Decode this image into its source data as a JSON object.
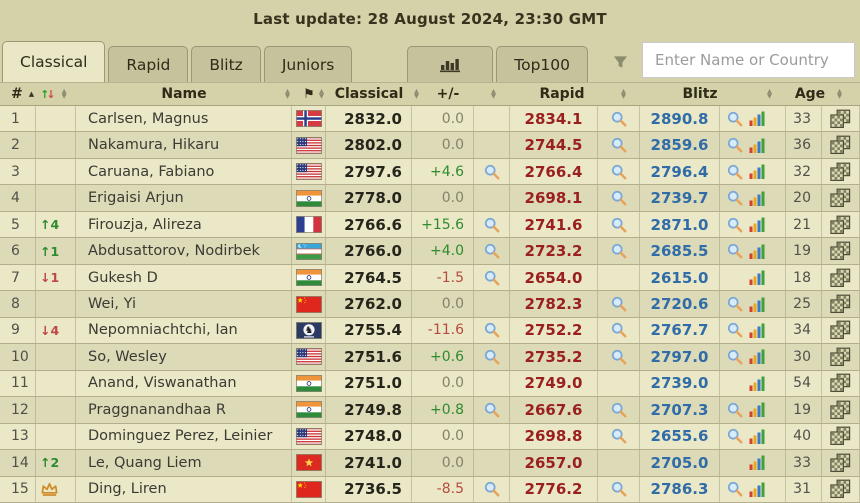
{
  "topbar": {
    "last_update": "Last update: 28 August 2024, 23:30 GMT"
  },
  "tabs": [
    "Classical",
    "Rapid",
    "Blitz",
    "Juniors"
  ],
  "active_tab": "Classical",
  "top100_label": "Top100",
  "search": {
    "placeholder": "Enter Name or Country"
  },
  "icons": {
    "stats_tab": "bar-chart-icon",
    "filter": "funnel-icon",
    "flag_column": "flag-icon",
    "rating_lookup": "magnifier-icon",
    "rating_history": "rating-chart-icon",
    "games": "games-icon",
    "world_champion": "crown-icon",
    "sort": "sort-arrows-icon"
  },
  "colors": {
    "background": "#d5d2a9",
    "row_odd": "#ebe8c7",
    "row_even": "#dddab7",
    "tab_inactive": "#c6c29b",
    "tab_active": "#eae7c6",
    "classical_value": "#26251c",
    "rapid_value": "#9a1f1f",
    "blitz_value": "#2f6ca8",
    "positive": "#2e8b2e",
    "negative": "#b84a3f",
    "neutral": "#85826b"
  },
  "table": {
    "columns": {
      "rank": "#",
      "name": "Name",
      "classical": "Classical",
      "delta": "+/-",
      "rapid": "Rapid",
      "blitz": "Blitz",
      "age": "Age"
    },
    "rows": [
      {
        "rank": "1",
        "change": null,
        "champion": false,
        "name": "Carlsen, Magnus",
        "country": "NO",
        "classical": "2832.0",
        "delta": "0.0",
        "classical_mag": false,
        "rapid": "2834.1",
        "rapid_mag": true,
        "blitz": "2890.8",
        "blitz_mag": true,
        "age": "33"
      },
      {
        "rank": "2",
        "change": null,
        "champion": false,
        "name": "Nakamura, Hikaru",
        "country": "US",
        "classical": "2802.0",
        "delta": "0.0",
        "classical_mag": false,
        "rapid": "2744.5",
        "rapid_mag": true,
        "blitz": "2859.6",
        "blitz_mag": true,
        "age": "36"
      },
      {
        "rank": "3",
        "change": null,
        "champion": false,
        "name": "Caruana, Fabiano",
        "country": "US",
        "classical": "2797.6",
        "delta": "+4.6",
        "classical_mag": true,
        "rapid": "2766.4",
        "rapid_mag": true,
        "blitz": "2796.4",
        "blitz_mag": true,
        "age": "32"
      },
      {
        "rank": "4",
        "change": null,
        "champion": false,
        "name": "Erigaisi Arjun",
        "country": "IN",
        "classical": "2778.0",
        "delta": "0.0",
        "classical_mag": false,
        "rapid": "2698.1",
        "rapid_mag": true,
        "blitz": "2739.7",
        "blitz_mag": true,
        "age": "20"
      },
      {
        "rank": "5",
        "change": {
          "dir": "up",
          "value": "4"
        },
        "champion": false,
        "name": "Firouzja, Alireza",
        "country": "FR",
        "classical": "2766.6",
        "delta": "+15.6",
        "classical_mag": true,
        "rapid": "2741.6",
        "rapid_mag": true,
        "blitz": "2871.0",
        "blitz_mag": true,
        "age": "21"
      },
      {
        "rank": "6",
        "change": {
          "dir": "up",
          "value": "1"
        },
        "champion": false,
        "name": "Abdusattorov, Nodirbek",
        "country": "UZ",
        "classical": "2766.0",
        "delta": "+4.0",
        "classical_mag": true,
        "rapid": "2723.2",
        "rapid_mag": true,
        "blitz": "2685.5",
        "blitz_mag": true,
        "age": "19"
      },
      {
        "rank": "7",
        "change": {
          "dir": "down",
          "value": "1"
        },
        "champion": false,
        "name": "Gukesh D",
        "country": "IN",
        "classical": "2764.5",
        "delta": "-1.5",
        "classical_mag": true,
        "rapid": "2654.0",
        "rapid_mag": false,
        "blitz": "2615.0",
        "blitz_mag": false,
        "age": "18"
      },
      {
        "rank": "8",
        "change": null,
        "champion": false,
        "name": "Wei, Yi",
        "country": "CN",
        "classical": "2762.0",
        "delta": "0.0",
        "classical_mag": false,
        "rapid": "2782.3",
        "rapid_mag": true,
        "blitz": "2720.6",
        "blitz_mag": true,
        "age": "25"
      },
      {
        "rank": "9",
        "change": {
          "dir": "down",
          "value": "4"
        },
        "champion": false,
        "name": "Nepomniachtchi, Ian",
        "country": "FIDE",
        "classical": "2755.4",
        "delta": "-11.6",
        "classical_mag": true,
        "rapid": "2752.2",
        "rapid_mag": true,
        "blitz": "2767.7",
        "blitz_mag": true,
        "age": "34"
      },
      {
        "rank": "10",
        "change": null,
        "champion": false,
        "name": "So, Wesley",
        "country": "US",
        "classical": "2751.6",
        "delta": "+0.6",
        "classical_mag": true,
        "rapid": "2735.2",
        "rapid_mag": true,
        "blitz": "2797.0",
        "blitz_mag": true,
        "age": "30"
      },
      {
        "rank": "11",
        "change": null,
        "champion": false,
        "name": "Anand, Viswanathan",
        "country": "IN",
        "classical": "2751.0",
        "delta": "0.0",
        "classical_mag": false,
        "rapid": "2749.0",
        "rapid_mag": false,
        "blitz": "2739.0",
        "blitz_mag": false,
        "age": "54"
      },
      {
        "rank": "12",
        "change": null,
        "champion": false,
        "name": "Praggnanandhaa R",
        "country": "IN",
        "classical": "2749.8",
        "delta": "+0.8",
        "classical_mag": true,
        "rapid": "2667.6",
        "rapid_mag": true,
        "blitz": "2707.3",
        "blitz_mag": true,
        "age": "19"
      },
      {
        "rank": "13",
        "change": null,
        "champion": false,
        "name": "Dominguez Perez, Leinier",
        "country": "US",
        "classical": "2748.0",
        "delta": "0.0",
        "classical_mag": false,
        "rapid": "2698.8",
        "rapid_mag": true,
        "blitz": "2655.6",
        "blitz_mag": true,
        "age": "40"
      },
      {
        "rank": "14",
        "change": {
          "dir": "up",
          "value": "2"
        },
        "champion": false,
        "name": "Le, Quang Liem",
        "country": "VN",
        "classical": "2741.0",
        "delta": "0.0",
        "classical_mag": false,
        "rapid": "2657.0",
        "rapid_mag": false,
        "blitz": "2705.0",
        "blitz_mag": false,
        "age": "33"
      },
      {
        "rank": "15",
        "change": null,
        "champion": true,
        "name": "Ding, Liren",
        "country": "CN",
        "classical": "2736.5",
        "delta": "-8.5",
        "classical_mag": true,
        "rapid": "2776.2",
        "rapid_mag": true,
        "blitz": "2786.3",
        "blitz_mag": true,
        "age": "31"
      }
    ]
  }
}
